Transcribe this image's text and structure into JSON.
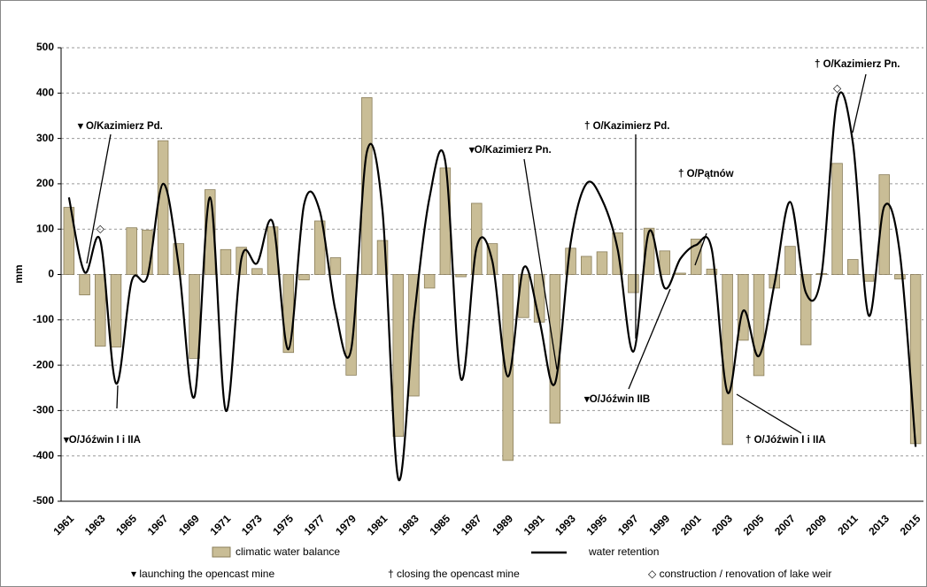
{
  "chart_data": {
    "type": "bar_line",
    "y_label": "mm",
    "ylim": [
      -500,
      500
    ],
    "yticks": [
      -500,
      -400,
      -300,
      -200,
      -100,
      0,
      100,
      200,
      300,
      400,
      500
    ],
    "grid": true,
    "categories": [
      "1961",
      null,
      "1963",
      null,
      "1965",
      null,
      "1967",
      null,
      "1969",
      null,
      "1971",
      null,
      "1973",
      null,
      "1975",
      null,
      "1977",
      null,
      "1979",
      null,
      "1981",
      null,
      "1983",
      null,
      "1985",
      null,
      "1987",
      null,
      "1989",
      null,
      "1991",
      null,
      "1993",
      null,
      "1995",
      null,
      "1997",
      null,
      "1999",
      null,
      "2001",
      null,
      "2003",
      null,
      "2005",
      null,
      "2007",
      null,
      "2009",
      null,
      "2011",
      null,
      "2013",
      null,
      "2015"
    ],
    "series": [
      {
        "name": "climatic water balance",
        "type": "bar",
        "color": "#c9bd96",
        "values": [
          148,
          -45,
          -158,
          -160,
          103,
          98,
          295,
          68,
          -185,
          187,
          55,
          60,
          13,
          105,
          -172,
          -12,
          118,
          37,
          -222,
          390,
          75,
          -357,
          -268,
          -30,
          235,
          -5,
          157,
          68,
          -410,
          -95,
          -105,
          -328,
          58,
          40,
          50,
          92,
          -40,
          102,
          52,
          3,
          78,
          12,
          -375,
          -145,
          -223,
          -30,
          62,
          -155,
          2,
          245,
          33,
          -15,
          220,
          -10,
          -373
        ]
      },
      {
        "name": "water retention",
        "type": "line",
        "color": "#000000",
        "values": [
          170,
          5,
          75,
          -240,
          -15,
          -5,
          200,
          20,
          -270,
          170,
          -300,
          35,
          25,
          115,
          -165,
          155,
          140,
          -80,
          -165,
          270,
          140,
          -450,
          -100,
          170,
          250,
          -230,
          60,
          30,
          -225,
          15,
          -100,
          -240,
          70,
          200,
          165,
          55,
          -170,
          95,
          -30,
          35,
          65,
          55,
          -260,
          -80,
          -180,
          -20,
          160,
          -40,
          0,
          385,
          290,
          -90,
          150,
          45,
          -380
        ]
      }
    ],
    "weir_markers": {
      "symbol": "◇",
      "category_indices": [
        2,
        49
      ],
      "values": [
        100,
        410
      ]
    },
    "annotations": [
      "▾ O/Kazimierz Pd.",
      "▾O/Jóźwin I  i IIA",
      "▾O/Kazimierz  Pn.",
      "† O/Kazimierz Pd.",
      "† O/Pątnów",
      "▾O/Jóźwin IIB",
      "† O/Jóźwin I i IIA",
      "† O/Kazimierz Pn."
    ],
    "legend_notes": [
      "▾  launching the opencast mine",
      "†  closing the opencast mine",
      "◇  construction / renovation of lake weir"
    ]
  }
}
